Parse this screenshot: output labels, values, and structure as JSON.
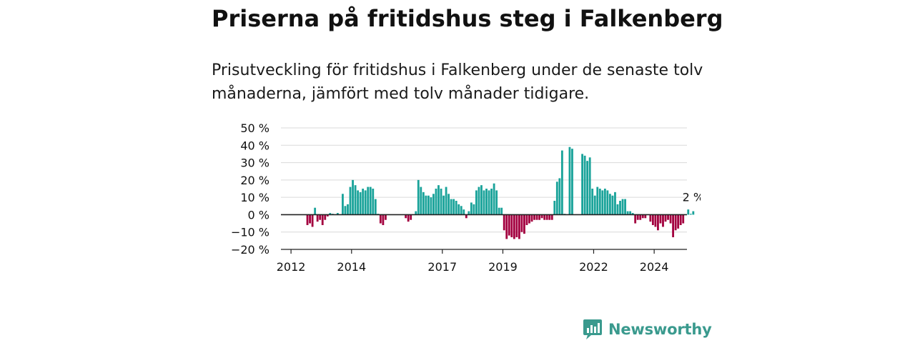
{
  "title": "Priserna på fritidshus steg i Falkenberg",
  "subtitle": "Prisutveckling för fritidshus i Falkenberg under de senaste tolv månaderna, jämfört med tolv månader tidigare.",
  "brand": {
    "name": "Newsworthy",
    "logo_icon": "bar-chart-speech-bubble-icon"
  },
  "colors": {
    "positive": "#1aa39a",
    "negative": "#a3003f",
    "grid": "#d9d9d9",
    "axis": "#222222",
    "text": "#111111",
    "brand": "#3a9a8e"
  },
  "chart_data": {
    "type": "bar",
    "x_unit": "month",
    "x_start": "2011-09",
    "x_end": "2025-01",
    "ylim": [
      -20,
      50
    ],
    "yticks": [
      -20,
      -10,
      0,
      10,
      20,
      30,
      40,
      50
    ],
    "ytick_labels": [
      "−20 %",
      "−10 %",
      "0 %",
      "10 %",
      "20 %",
      "30 %",
      "40 %",
      "50 %"
    ],
    "xtick_labels": [
      "2012",
      "2014",
      "2017",
      "2019",
      "2022",
      "2024"
    ],
    "grid": true,
    "last_value_label": "2 %",
    "values": [
      null,
      null,
      null,
      null,
      null,
      null,
      null,
      null,
      null,
      null,
      -6,
      -5,
      -7,
      4,
      -4,
      -3,
      -6,
      -3,
      -1,
      1,
      0.5,
      null,
      1,
      null,
      12,
      5,
      6,
      16,
      20,
      17,
      14,
      13,
      15,
      14,
      16,
      16,
      15,
      9,
      0.5,
      -5,
      -6,
      -3,
      null,
      null,
      null,
      null,
      null,
      null,
      null,
      -2,
      -4,
      -3,
      null,
      2,
      20,
      16,
      13,
      11,
      11,
      10,
      12,
      15,
      17,
      15,
      11,
      16,
      12,
      9,
      9,
      8,
      6,
      5,
      3,
      -2,
      2,
      7,
      6,
      14,
      16,
      17,
      14,
      15,
      14,
      15,
      18,
      14,
      4,
      4,
      -9,
      -14,
      -12,
      -13,
      -14,
      -13,
      -14,
      -10,
      -11,
      -6,
      -5,
      -4,
      -3,
      -3,
      -3,
      -2,
      -3,
      -3,
      -3,
      -3,
      8,
      19,
      21,
      37,
      0.5,
      null,
      39,
      38,
      null,
      null,
      null,
      35,
      34,
      31,
      33,
      15,
      11,
      16,
      15,
      14,
      15,
      14,
      12,
      11,
      13,
      6,
      8,
      9,
      9,
      2,
      2,
      1,
      -5,
      -3,
      -3,
      -2,
      -2,
      null,
      -4,
      -6,
      -7,
      -9,
      -5,
      -7,
      -4,
      -3,
      -5,
      -13,
      -9,
      -8,
      -6,
      -5,
      null,
      3,
      0.5,
      2
    ]
  }
}
